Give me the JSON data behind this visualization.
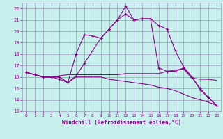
{
  "xlabel": "Windchill (Refroidissement éolien,°C)",
  "xlim": [
    -0.5,
    23.5
  ],
  "ylim": [
    13,
    22.5
  ],
  "yticks": [
    13,
    14,
    15,
    16,
    17,
    18,
    19,
    20,
    21,
    22
  ],
  "xticks": [
    0,
    1,
    2,
    3,
    4,
    5,
    6,
    7,
    8,
    9,
    10,
    11,
    12,
    13,
    14,
    15,
    16,
    17,
    18,
    19,
    20,
    21,
    22,
    23
  ],
  "bg_color": "#c8f0ec",
  "grid_color": "#9999bb",
  "line_color": "#880088",
  "lines": [
    {
      "x": [
        0,
        1,
        2,
        3,
        4,
        5,
        6,
        7,
        8,
        9,
        10,
        11,
        12,
        13,
        14,
        15,
        16,
        17,
        18,
        19,
        20,
        21,
        22,
        23
      ],
      "y": [
        16.4,
        16.2,
        16.0,
        16.0,
        16.0,
        15.5,
        18.0,
        19.7,
        19.6,
        19.4,
        20.2,
        21.0,
        22.2,
        21.0,
        21.1,
        21.1,
        20.5,
        20.2,
        18.3,
        16.9,
        16.0,
        15.0,
        14.2,
        13.5
      ],
      "marker": "+",
      "ms": 3.5
    },
    {
      "x": [
        0,
        1,
        2,
        3,
        4,
        5,
        6,
        7,
        8,
        9,
        10,
        11,
        12,
        13,
        14,
        15,
        16,
        17,
        18,
        19,
        20,
        21,
        22,
        23
      ],
      "y": [
        16.4,
        16.2,
        16.0,
        16.0,
        15.8,
        15.5,
        16.1,
        17.2,
        18.3,
        19.4,
        20.2,
        21.0,
        21.5,
        21.0,
        21.1,
        21.1,
        16.8,
        16.5,
        16.5,
        16.8,
        16.0,
        14.9,
        14.2,
        13.5
      ],
      "marker": "+",
      "ms": 3.0
    },
    {
      "x": [
        0,
        1,
        2,
        3,
        4,
        5,
        6,
        7,
        8,
        9,
        10,
        11,
        12,
        13,
        14,
        15,
        16,
        17,
        18,
        19,
        20,
        21,
        22,
        23
      ],
      "y": [
        16.4,
        16.2,
        16.0,
        16.0,
        16.1,
        16.2,
        16.2,
        16.2,
        16.2,
        16.2,
        16.2,
        16.2,
        16.3,
        16.3,
        16.3,
        16.3,
        16.3,
        16.5,
        16.6,
        16.7,
        15.9,
        15.8,
        15.8,
        15.7
      ],
      "marker": null,
      "ms": 0
    },
    {
      "x": [
        0,
        1,
        2,
        3,
        4,
        5,
        6,
        7,
        8,
        9,
        10,
        11,
        12,
        13,
        14,
        15,
        16,
        17,
        18,
        19,
        20,
        21,
        22,
        23
      ],
      "y": [
        16.4,
        16.2,
        16.0,
        16.0,
        16.0,
        15.5,
        16.0,
        16.0,
        16.0,
        16.0,
        15.8,
        15.7,
        15.6,
        15.5,
        15.4,
        15.3,
        15.1,
        15.0,
        14.8,
        14.5,
        14.2,
        14.0,
        13.8,
        13.5
      ],
      "marker": null,
      "ms": 0
    }
  ]
}
